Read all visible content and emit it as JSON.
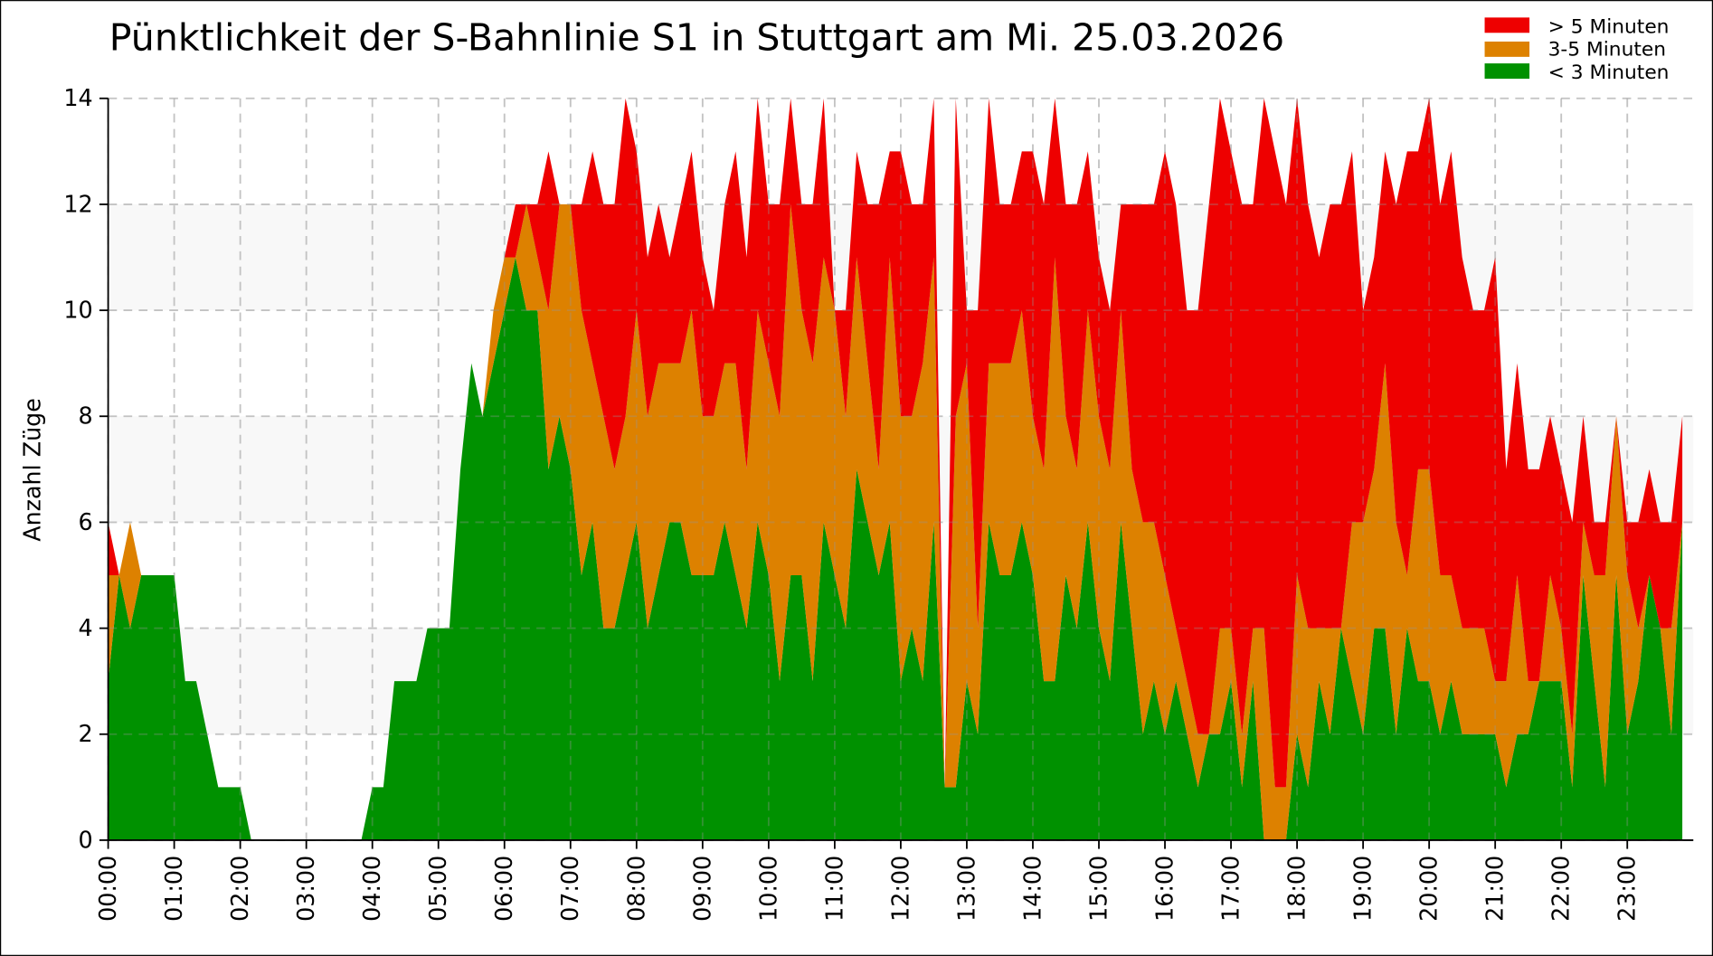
{
  "chart_data": {
    "type": "area",
    "stacked": true,
    "title": "Pünktlichkeit der S-Bahnlinie S1 in Stuttgart am Mi. 25.03.2026",
    "xlabel": "",
    "ylabel": "Anzahl Züge",
    "ylim": [
      0,
      14
    ],
    "yticks": [
      0,
      2,
      4,
      6,
      8,
      10,
      12,
      14
    ],
    "xtick_labels": [
      "00:00",
      "01:00",
      "02:00",
      "03:00",
      "04:00",
      "05:00",
      "06:00",
      "07:00",
      "08:00",
      "09:00",
      "10:00",
      "11:00",
      "12:00",
      "13:00",
      "14:00",
      "15:00",
      "16:00",
      "17:00",
      "18:00",
      "19:00",
      "20:00",
      "21:00",
      "22:00",
      "23:00"
    ],
    "grid": true,
    "alternating_bands": true,
    "legend_position": "top-right",
    "x": [
      "00:00",
      "00:10",
      "00:20",
      "00:30",
      "00:40",
      "00:50",
      "01:00",
      "01:10",
      "01:20",
      "01:30",
      "01:40",
      "01:50",
      "02:00",
      "02:10",
      "02:20",
      "02:30",
      "02:40",
      "02:50",
      "03:00",
      "03:10",
      "03:20",
      "03:30",
      "03:40",
      "03:50",
      "04:00",
      "04:10",
      "04:20",
      "04:30",
      "04:40",
      "04:50",
      "05:00",
      "05:10",
      "05:20",
      "05:30",
      "05:40",
      "05:50",
      "06:00",
      "06:10",
      "06:20",
      "06:30",
      "06:40",
      "06:50",
      "07:00",
      "07:10",
      "07:20",
      "07:30",
      "07:40",
      "07:50",
      "08:00",
      "08:10",
      "08:20",
      "08:30",
      "08:40",
      "08:50",
      "09:00",
      "09:10",
      "09:20",
      "09:30",
      "09:40",
      "09:50",
      "10:00",
      "10:10",
      "10:20",
      "10:30",
      "10:40",
      "10:50",
      "11:00",
      "11:10",
      "11:20",
      "11:30",
      "11:40",
      "11:50",
      "12:00",
      "12:10",
      "12:20",
      "12:30",
      "12:40",
      "12:50",
      "13:00",
      "13:10",
      "13:20",
      "13:30",
      "13:40",
      "13:50",
      "14:00",
      "14:10",
      "14:20",
      "14:30",
      "14:40",
      "14:50",
      "15:00",
      "15:10",
      "15:20",
      "15:30",
      "15:40",
      "15:50",
      "16:00",
      "16:10",
      "16:20",
      "16:30",
      "16:40",
      "16:50",
      "17:00",
      "17:10",
      "17:20",
      "17:30",
      "17:40",
      "17:50",
      "18:00",
      "18:10",
      "18:20",
      "18:30",
      "18:40",
      "18:50",
      "19:00",
      "19:10",
      "19:20",
      "19:30",
      "19:40",
      "19:50",
      "20:00",
      "20:10",
      "20:20",
      "20:30",
      "20:40",
      "20:50",
      "21:00",
      "21:10",
      "21:20",
      "21:30",
      "21:40",
      "21:50",
      "22:00",
      "22:10",
      "22:20",
      "22:30",
      "22:40",
      "22:50",
      "23:00",
      "23:10",
      "23:20",
      "23:30",
      "23:40",
      "23:50"
    ],
    "series": [
      {
        "name": "< 3 Minuten",
        "color": "#009100",
        "values": [
          3,
          5,
          4,
          5,
          5,
          5,
          5,
          3,
          3,
          2,
          1,
          1,
          1,
          0,
          0,
          0,
          0,
          0,
          0,
          0,
          0,
          0,
          0,
          0,
          1,
          1,
          3,
          3,
          3,
          4,
          4,
          4,
          7,
          9,
          8,
          9,
          10,
          11,
          10,
          10,
          7,
          8,
          7,
          5,
          6,
          4,
          4,
          5,
          6,
          4,
          5,
          6,
          6,
          5,
          5,
          5,
          6,
          5,
          4,
          6,
          5,
          3,
          5,
          5,
          3,
          6,
          5,
          4,
          7,
          6,
          5,
          6,
          3,
          4,
          3,
          6,
          1,
          1,
          3,
          2,
          6,
          5,
          5,
          6,
          5,
          3,
          3,
          5,
          4,
          6,
          4,
          3,
          6,
          4,
          2,
          3,
          2,
          3,
          2,
          1,
          2,
          2,
          3,
          1,
          3,
          0,
          0,
          0,
          2,
          1,
          3,
          2,
          4,
          3,
          2,
          4,
          4,
          2,
          4,
          3,
          3,
          2,
          3,
          2,
          2,
          2,
          2,
          1,
          2,
          2,
          3,
          3,
          3,
          1,
          5,
          3,
          1,
          5,
          2,
          3,
          5,
          4,
          2,
          6
        ]
      },
      {
        "name": "3-5 Minuten",
        "color": "#dd8100",
        "values": [
          2,
          0,
          2,
          0,
          0,
          0,
          0,
          0,
          0,
          0,
          0,
          0,
          0,
          0,
          0,
          0,
          0,
          0,
          0,
          0,
          0,
          0,
          0,
          0,
          0,
          0,
          0,
          0,
          0,
          0,
          0,
          0,
          0,
          0,
          0,
          1,
          1,
          0,
          2,
          1,
          3,
          4,
          5,
          5,
          3,
          4,
          3,
          3,
          4,
          4,
          4,
          3,
          3,
          5,
          3,
          3,
          3,
          4,
          3,
          4,
          4,
          5,
          7,
          5,
          6,
          5,
          5,
          4,
          4,
          3,
          2,
          5,
          5,
          4,
          6,
          5,
          0,
          7,
          6,
          2,
          3,
          4,
          4,
          4,
          3,
          4,
          8,
          3,
          3,
          4,
          4,
          4,
          4,
          3,
          4,
          3,
          3,
          1,
          1,
          1,
          0,
          2,
          1,
          1,
          1,
          4,
          1,
          1,
          3,
          3,
          1,
          2,
          0,
          3,
          4,
          3,
          5,
          4,
          1,
          4,
          4,
          3,
          2,
          2,
          2,
          2,
          1,
          2,
          3,
          1,
          0,
          2,
          1,
          1,
          1,
          2,
          4,
          3,
          3,
          1,
          0,
          0,
          2,
          0
        ]
      },
      {
        "name": "> 5 Minuten",
        "color": "#ee0000",
        "values": [
          1,
          0,
          0,
          0,
          0,
          0,
          0,
          0,
          0,
          0,
          0,
          0,
          0,
          0,
          0,
          0,
          0,
          0,
          0,
          0,
          0,
          0,
          0,
          0,
          0,
          0,
          0,
          0,
          0,
          0,
          0,
          0,
          0,
          0,
          0,
          0,
          0,
          1,
          0,
          1,
          3,
          0,
          0,
          2,
          4,
          4,
          5,
          6,
          3,
          3,
          3,
          2,
          3,
          3,
          3,
          2,
          3,
          4,
          4,
          4,
          3,
          4,
          2,
          2,
          3,
          3,
          0,
          2,
          2,
          3,
          5,
          2,
          5,
          4,
          3,
          3,
          0,
          6,
          1,
          6,
          5,
          3,
          3,
          3,
          5,
          5,
          3,
          4,
          5,
          3,
          3,
          3,
          2,
          5,
          6,
          6,
          8,
          8,
          7,
          8,
          10,
          10,
          9,
          10,
          8,
          10,
          12,
          11,
          9,
          8,
          7,
          8,
          8,
          7,
          4,
          4,
          4,
          6,
          8,
          6,
          7,
          7,
          8,
          7,
          6,
          6,
          8,
          4,
          4,
          4,
          4,
          3,
          3,
          4,
          2,
          1,
          1,
          0,
          1,
          2,
          2,
          2,
          2,
          2
        ]
      }
    ],
    "legend": [
      {
        "label": "> 5 Minuten",
        "color": "#ee0000"
      },
      {
        "label": "3-5 Minuten",
        "color": "#dd8100"
      },
      {
        "label": "< 3 Minuten",
        "color": "#009100"
      }
    ]
  }
}
